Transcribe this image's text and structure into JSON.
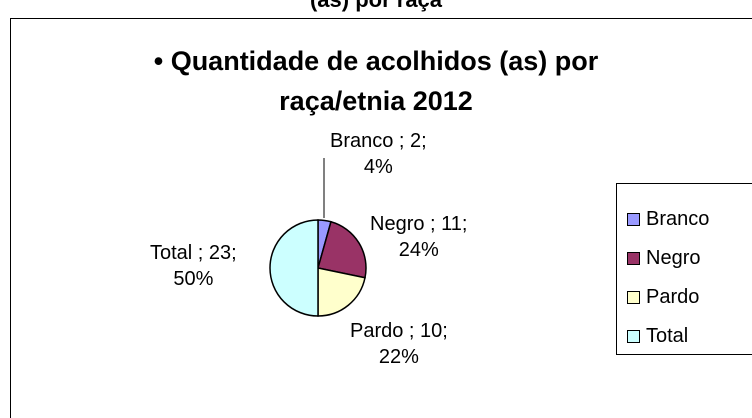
{
  "top_cut_text": "(as) por raça",
  "chart_data": {
    "type": "pie",
    "title_lines": [
      "• Quantidade de acolhidos (as) por",
      "raça/etnia 2012"
    ],
    "slices": [
      {
        "name": "Branco",
        "value": 2,
        "percent": "4%",
        "label_main": "Branco ; 2;",
        "label_pct": "4%",
        "color": "#9999FF"
      },
      {
        "name": "Negro",
        "value": 11,
        "percent": "24%",
        "label_main": "Negro ; 11;",
        "label_pct": "24%",
        "color": "#993366"
      },
      {
        "name": "Pardo",
        "value": 10,
        "percent": "22%",
        "label_main": "Pardo ; 10;",
        "label_pct": "22%",
        "color": "#FFFFCC"
      },
      {
        "name": "Total",
        "value": 23,
        "percent": "50%",
        "label_main": "Total ; 23;",
        "label_pct": "50%",
        "color": "#CCFFFF"
      }
    ],
    "legend_entries": [
      "Branco",
      "Negro",
      "Pardo",
      "Total"
    ],
    "legend_position": "right"
  }
}
